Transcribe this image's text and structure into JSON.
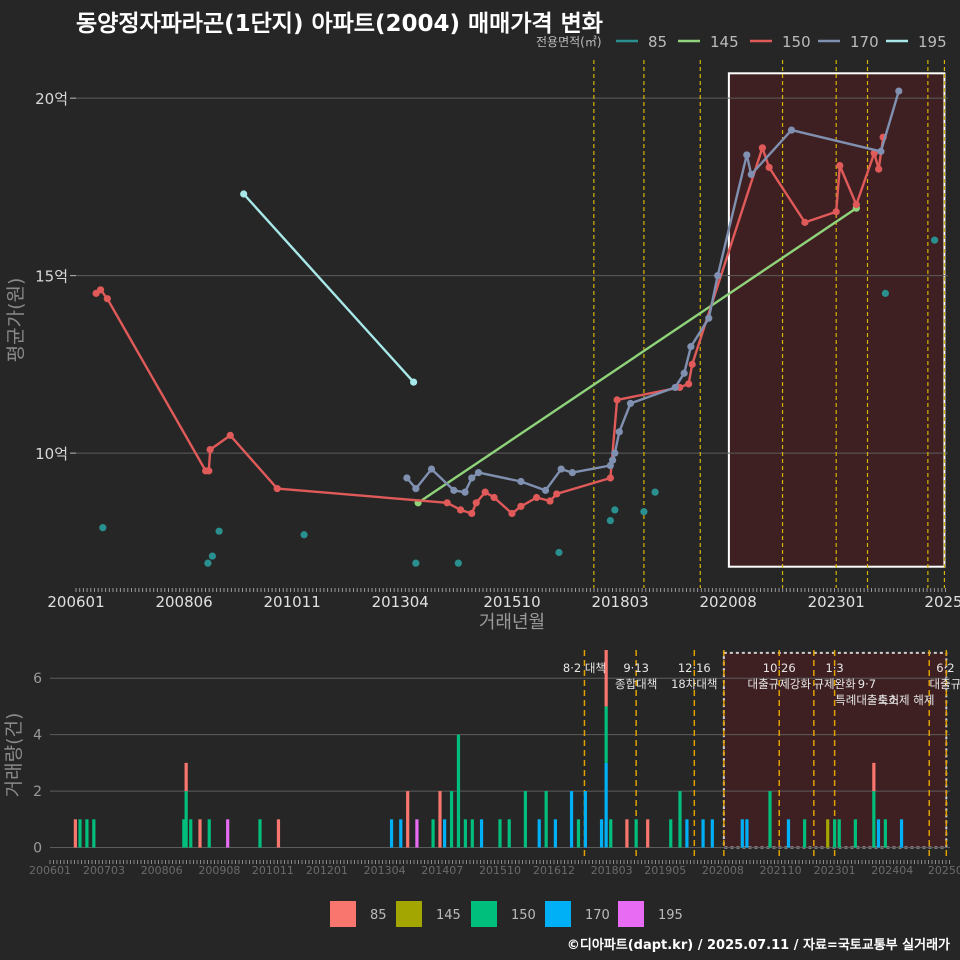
{
  "title": "동양정자파라곤(1단지) 아파트(2004) 매매가격 변화",
  "credit": "©디아파트(dapt.kr) / 2025.07.11 / 자료=국토교통부 실거래가",
  "colors": {
    "background": "#262626",
    "grid": "#5c5c5c",
    "shade_fill": "#3f2022",
    "policy_line": "#d4b400",
    "s85": "#2a8f8f",
    "s145": "#8fd47a",
    "s150": "#e05a5a",
    "s170": "#8090b0",
    "s195": "#a8e8e8",
    "b85": "#f8766d",
    "b145": "#a3a500",
    "b150": "#00bf7d",
    "b170": "#00b0f6",
    "b195": "#e76bf3"
  },
  "chart_data": [
    {
      "type": "line",
      "name": "price",
      "ylabel": "평균가(원)",
      "xlabel": "거래년월",
      "legend_title": "전용면적(㎡)",
      "legend_position": "top-right",
      "x_range": [
        2006.0,
        2025.5
      ],
      "y_range": [
        6.2,
        21.3
      ],
      "yticks": [
        {
          "v": 10,
          "label": "10억"
        },
        {
          "v": 15,
          "label": "15억"
        },
        {
          "v": 20,
          "label": "20억"
        }
      ],
      "xticks": [
        {
          "v": 2006.0,
          "label": "200601"
        },
        {
          "v": 2008.417,
          "label": "200806"
        },
        {
          "v": 2010.833,
          "label": "201011"
        },
        {
          "v": 2013.25,
          "label": "201304"
        },
        {
          "v": 2015.75,
          "label": "201510"
        },
        {
          "v": 2018.167,
          "label": "201803"
        },
        {
          "v": 2020.583,
          "label": "202008"
        },
        {
          "v": 2023.0,
          "label": "202301"
        },
        {
          "v": 2025.4,
          "label": "2025"
        }
      ],
      "shaded_region": {
        "x0": 2020.6,
        "x1": 2025.42,
        "y0": 6.8,
        "y1": 20.7
      },
      "vlines": [
        2017.58,
        2018.7,
        2019.96,
        2021.8,
        2023.0,
        2023.7,
        2025.05,
        2025.42
      ],
      "series": [
        {
          "name": "85",
          "line": false,
          "points": [
            [
              2006.6,
              7.9
            ],
            [
              2008.95,
              6.9
            ],
            [
              2009.05,
              7.1
            ],
            [
              2009.2,
              7.8
            ],
            [
              2011.1,
              7.7
            ],
            [
              2013.6,
              6.9
            ],
            [
              2014.55,
              6.9
            ],
            [
              2016.8,
              7.2
            ],
            [
              2017.95,
              8.1
            ],
            [
              2018.05,
              8.4
            ],
            [
              2018.7,
              8.35
            ],
            [
              2018.95,
              8.9
            ],
            [
              2024.1,
              14.5
            ],
            [
              2025.2,
              16.0
            ]
          ]
        },
        {
          "name": "145",
          "line": true,
          "points": [
            [
              2013.65,
              8.6
            ],
            [
              2023.45,
              16.9
            ]
          ]
        },
        {
          "name": "150",
          "line": true,
          "points": [
            [
              2006.45,
              14.5
            ],
            [
              2006.55,
              14.6
            ],
            [
              2006.7,
              14.35
            ],
            [
              2008.9,
              9.5
            ],
            [
              2008.97,
              9.5
            ],
            [
              2009.0,
              10.1
            ],
            [
              2009.45,
              10.5
            ],
            [
              2010.5,
              9.0
            ],
            [
              2014.3,
              8.6
            ],
            [
              2014.6,
              8.4
            ],
            [
              2014.85,
              8.3
            ],
            [
              2014.95,
              8.6
            ],
            [
              2015.15,
              8.9
            ],
            [
              2015.35,
              8.75
            ],
            [
              2015.75,
              8.3
            ],
            [
              2015.95,
              8.5
            ],
            [
              2016.3,
              8.75
            ],
            [
              2016.6,
              8.65
            ],
            [
              2016.75,
              8.85
            ],
            [
              2017.95,
              9.3
            ],
            [
              2018.1,
              11.5
            ],
            [
              2019.5,
              11.85
            ],
            [
              2019.7,
              11.95
            ],
            [
              2019.78,
              12.5
            ],
            [
              2021.35,
              18.6
            ],
            [
              2021.5,
              18.05
            ],
            [
              2022.3,
              16.5
            ],
            [
              2023.0,
              16.8
            ],
            [
              2023.08,
              18.1
            ],
            [
              2023.45,
              17.0
            ],
            [
              2023.85,
              18.45
            ],
            [
              2023.95,
              18.0
            ],
            [
              2024.05,
              18.9
            ]
          ]
        },
        {
          "name": "170",
          "line": true,
          "points": [
            [
              2013.4,
              9.3
            ],
            [
              2013.6,
              9.0
            ],
            [
              2013.95,
              9.55
            ],
            [
              2014.45,
              8.95
            ],
            [
              2014.7,
              8.9
            ],
            [
              2014.85,
              9.3
            ],
            [
              2015.0,
              9.45
            ],
            [
              2015.95,
              9.2
            ],
            [
              2016.5,
              8.95
            ],
            [
              2016.85,
              9.55
            ],
            [
              2017.1,
              9.45
            ],
            [
              2017.95,
              9.65
            ],
            [
              2018.0,
              9.8
            ],
            [
              2018.05,
              10.0
            ],
            [
              2018.15,
              10.6
            ],
            [
              2018.4,
              11.4
            ],
            [
              2019.4,
              11.85
            ],
            [
              2019.6,
              12.25
            ],
            [
              2019.75,
              13.0
            ],
            [
              2020.15,
              13.8
            ],
            [
              2020.35,
              15.0
            ],
            [
              2021.0,
              18.4
            ],
            [
              2021.1,
              17.85
            ],
            [
              2022.0,
              19.1
            ],
            [
              2024.0,
              18.5
            ],
            [
              2024.4,
              20.2
            ]
          ]
        },
        {
          "name": "195",
          "line": true,
          "points": [
            [
              2009.75,
              17.3
            ],
            [
              2013.55,
              12.0
            ]
          ]
        }
      ]
    },
    {
      "type": "bar",
      "name": "volume",
      "ylabel": "거래량(건)",
      "x_range": [
        2006.0,
        2025.5
      ],
      "y_range": [
        -0.3,
        7.0
      ],
      "yticks": [
        {
          "v": 0,
          "label": "0"
        },
        {
          "v": 2,
          "label": "2"
        },
        {
          "v": 4,
          "label": "4"
        },
        {
          "v": 6,
          "label": "6"
        }
      ],
      "xticks": [
        {
          "v": 2006.0,
          "label": "200601"
        },
        {
          "v": 2007.17,
          "label": "200703"
        },
        {
          "v": 2008.42,
          "label": "200806"
        },
        {
          "v": 2009.67,
          "label": "200908"
        },
        {
          "v": 2010.83,
          "label": "201011"
        },
        {
          "v": 2012.0,
          "label": "201201"
        },
        {
          "v": 2013.25,
          "label": "201304"
        },
        {
          "v": 2014.5,
          "label": "201407"
        },
        {
          "v": 2015.75,
          "label": "201510"
        },
        {
          "v": 2016.92,
          "label": "201612"
        },
        {
          "v": 2018.17,
          "label": "201803"
        },
        {
          "v": 2019.33,
          "label": "201905"
        },
        {
          "v": 2020.58,
          "label": "202008"
        },
        {
          "v": 2021.83,
          "label": "202110"
        },
        {
          "v": 2023.0,
          "label": "202301"
        },
        {
          "v": 2024.25,
          "label": "202404"
        },
        {
          "v": 2025.4,
          "label": "20250"
        }
      ],
      "shaded_region": {
        "x0": 2020.6,
        "x1": 2025.42,
        "y0": 0,
        "y1": 6.9
      },
      "vlines": [
        2017.58,
        2018.7,
        2019.96,
        2020.6,
        2021.8,
        2022.55,
        2023.0,
        2025.05,
        2025.42
      ],
      "annotations": [
        {
          "x": 2017.58,
          "lines": [
            "8·2 대책"
          ]
        },
        {
          "x": 2018.7,
          "lines": [
            "9·13",
            "종합대책"
          ]
        },
        {
          "x": 2019.96,
          "lines": [
            "12·16",
            "18차대책"
          ]
        },
        {
          "x": 2021.8,
          "lines": [
            "10·26",
            "대출규제강화"
          ]
        },
        {
          "x": 2023.0,
          "lines": [
            "1·3",
            "규제완화"
          ]
        },
        {
          "x": 2023.7,
          "lines": [
            "",
            "9·7",
            "특례대출축소"
          ]
        },
        {
          "x": 2024.55,
          "lines": [
            "",
            "",
            "토허제 해제"
          ]
        },
        {
          "x": 2025.4,
          "lines": [
            "6·2",
            "대출규"
          ]
        }
      ],
      "categories_legend": [
        "85",
        "145",
        "150",
        "170",
        "195"
      ],
      "bars": [
        {
          "x": 2006.55,
          "v": 1,
          "s": "85"
        },
        {
          "x": 2006.65,
          "v": 1,
          "s": "150"
        },
        {
          "x": 2006.8,
          "v": 1,
          "s": "150"
        },
        {
          "x": 2006.95,
          "v": 1,
          "s": "150"
        },
        {
          "x": 2008.9,
          "v": 1,
          "s": "150"
        },
        {
          "x": 2008.95,
          "v": 3,
          "s": "85"
        },
        {
          "x": 2009.05,
          "v": 1,
          "s": "150"
        },
        {
          "x": 2009.25,
          "v": 1,
          "s": "85"
        },
        {
          "x": 2009.45,
          "v": 1,
          "s": "150"
        },
        {
          "x": 2009.85,
          "v": 1,
          "s": "195"
        },
        {
          "x": 2010.55,
          "v": 1,
          "s": "150"
        },
        {
          "x": 2010.95,
          "v": 1,
          "s": "85"
        },
        {
          "x": 2013.4,
          "v": 1,
          "s": "170"
        },
        {
          "x": 2013.6,
          "v": 1,
          "s": "170"
        },
        {
          "x": 2013.75,
          "v": 2,
          "s": "85"
        },
        {
          "x": 2013.95,
          "v": 1,
          "s": "195"
        },
        {
          "x": 2014.3,
          "v": 1,
          "s": "150"
        },
        {
          "x": 2014.45,
          "v": 2,
          "s": "85"
        },
        {
          "x": 2014.55,
          "v": 1,
          "s": "170"
        },
        {
          "x": 2014.7,
          "v": 2,
          "s": "150"
        },
        {
          "x": 2014.85,
          "v": 4,
          "s": "150"
        },
        {
          "x": 2015.0,
          "v": 1,
          "s": "150"
        },
        {
          "x": 2015.15,
          "v": 1,
          "s": "150"
        },
        {
          "x": 2015.35,
          "v": 1,
          "s": "170"
        },
        {
          "x": 2015.75,
          "v": 1,
          "s": "150"
        },
        {
          "x": 2015.95,
          "v": 1,
          "s": "150"
        },
        {
          "x": 2016.3,
          "v": 2,
          "s": "150"
        },
        {
          "x": 2016.6,
          "v": 1,
          "s": "170"
        },
        {
          "x": 2016.75,
          "v": 2,
          "s": "150"
        },
        {
          "x": 2016.95,
          "v": 1,
          "s": "170"
        },
        {
          "x": 2017.3,
          "v": 2,
          "s": "170"
        },
        {
          "x": 2017.45,
          "v": 1,
          "s": "150"
        },
        {
          "x": 2017.6,
          "v": 2,
          "s": "170"
        },
        {
          "x": 2017.95,
          "v": 1,
          "s": "170"
        },
        {
          "x": 2018.05,
          "v": 7,
          "s": "85"
        },
        {
          "x": 2018.15,
          "v": 1,
          "s": "150"
        },
        {
          "x": 2018.5,
          "v": 1,
          "s": "85"
        },
        {
          "x": 2018.7,
          "v": 1,
          "s": "150"
        },
        {
          "x": 2018.95,
          "v": 1,
          "s": "85"
        },
        {
          "x": 2019.45,
          "v": 1,
          "s": "150"
        },
        {
          "x": 2019.65,
          "v": 2,
          "s": "150"
        },
        {
          "x": 2019.8,
          "v": 1,
          "s": "170"
        },
        {
          "x": 2020.15,
          "v": 1,
          "s": "170"
        },
        {
          "x": 2020.35,
          "v": 1,
          "s": "170"
        },
        {
          "x": 2021.0,
          "v": 1,
          "s": "170"
        },
        {
          "x": 2021.1,
          "v": 1,
          "s": "170"
        },
        {
          "x": 2021.6,
          "v": 2,
          "s": "150"
        },
        {
          "x": 2022.0,
          "v": 1,
          "s": "170"
        },
        {
          "x": 2022.35,
          "v": 1,
          "s": "150"
        },
        {
          "x": 2022.85,
          "v": 1,
          "s": "145"
        },
        {
          "x": 2023.0,
          "v": 1,
          "s": "150"
        },
        {
          "x": 2023.1,
          "v": 1,
          "s": "150"
        },
        {
          "x": 2023.45,
          "v": 1,
          "s": "150"
        },
        {
          "x": 2023.85,
          "v": 3,
          "s": "85"
        },
        {
          "x": 2023.95,
          "v": 1,
          "s": "170"
        },
        {
          "x": 2024.1,
          "v": 1,
          "s": "150"
        },
        {
          "x": 2024.45,
          "v": 1,
          "s": "170"
        }
      ],
      "stacked": [
        {
          "x": 2018.05,
          "parts": [
            {
              "s": "170",
              "v": 3
            },
            {
              "s": "150",
              "v": 2
            },
            {
              "s": "85",
              "v": 2
            }
          ]
        },
        {
          "x": 2023.85,
          "parts": [
            {
              "s": "150",
              "v": 2
            },
            {
              "s": "85",
              "v": 1
            }
          ]
        },
        {
          "x": 2008.95,
          "parts": [
            {
              "s": "150",
              "v": 2
            },
            {
              "s": "85",
              "v": 1
            }
          ]
        }
      ]
    }
  ]
}
